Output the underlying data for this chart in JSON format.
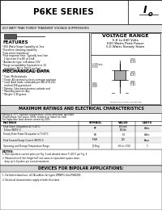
{
  "title": "P6KE SERIES",
  "subtitle": "600 WATT PEAK POWER TRANSIENT VOLTAGE SUPPRESSORS",
  "logo_text": "I",
  "logo_sub": "o",
  "voltage_range_title": "VOLTAGE RANGE",
  "voltage_range_line1": "6.8 to 440 Volts",
  "voltage_range_line2": "600 Watts Peak Power",
  "voltage_range_line3": "5.0 Watts Steady State",
  "features_title": "FEATURES",
  "features": [
    "*600 Watts Surge Capability at 1ms",
    "*Excellent clamping capability",
    "*Low series impedance",
    "*Fast response time: Typically less than",
    "  1.0ps from 0 to BV at 1mA",
    "*Avalanche type: V-A above 10V",
    "*Surge acceptability: Equivalent to 10",
    "  repetitions MIL-S-19500 method",
    "  2151B (one-hour length 10ms of 1ms)"
  ],
  "mech_title": "MECHANICAL DATA",
  "mech": [
    "* Case: Molded plastic",
    "* Finish: All external surfaces corrosion resistant",
    "* Lead: Axial leads, solderable per MIL-STD-202,",
    "  method 208 guaranteed",
    "* Polarity: Color band denotes cathode end",
    "* Mounting position: Any",
    "* Weight: 1.40 grams"
  ],
  "max_ratings_title": "MAXIMUM RATINGS AND ELECTRICAL CHARACTERISTICS",
  "ratings_sub1": "Rating at 25°C ambient temperature unless otherwise specified",
  "ratings_sub2": "Single phase, half wave, 60Hz, resistive or inductive load.",
  "ratings_sub3": "For capacitive load, derate current by 20%",
  "table_headers": [
    "RATINGS",
    "SYMBOL",
    "VALUE",
    "UNITS"
  ],
  "table_rows": [
    [
      "Peak Power Dissipation at T=25°C, T=1ms\n(NOTE 1)",
      "PP",
      "600(uni)\n500(bi)",
      "Watts"
    ],
    [
      "Steady State Power Dissipation at T=50°C",
      "PD",
      "5.0",
      "Watts"
    ],
    [
      "Peak Forward Surge Current (NOTE 2)",
      "IFSM",
      "200",
      "Amps"
    ],
    [
      "Operating and Storage Temperature Range",
      "TJ, Tstg",
      "-55 to +150",
      "°C"
    ]
  ],
  "notes_title": "NOTES:",
  "notes": [
    "1. Non-repetitive current pulse per Fig. 5 and derated above T=25°C per Fig. 4",
    "2. Measured on 8.3ms Single half sine-wave or equivalent square wave,",
    "   duty cycle 4 pulses per second maximum"
  ],
  "devices_title": "DEVICES FOR BIPOLAR APPLICATIONS:",
  "devices": [
    "1. For bidirectional use, all CA suffixes for types VRWM 5 thru P6KE200",
    "2. Electrical characteristics apply in both directions"
  ],
  "white": "#ffffff",
  "black": "#000000",
  "light_gray": "#cccccc",
  "dark_gray": "#555555",
  "mid_gray": "#999999",
  "section_hdr_bg": "#d0d0d0",
  "diag_dim1": "0.210\n(5.33)",
  "diag_dim2": "0.205\n(5.21)",
  "diag_dim3": "0.095\n(2.41)",
  "diag_dim4": "0.100 min\n(2.54)",
  "diag_dim5": "0.035\n(0.89)",
  "diag_note": "Dimensions in inches (millimeters)"
}
